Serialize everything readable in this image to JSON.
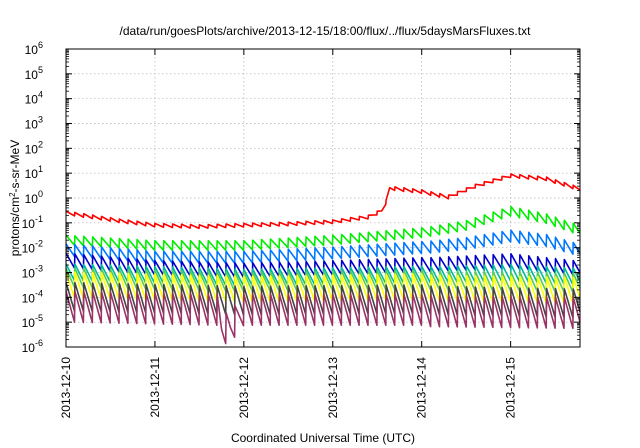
{
  "chart_data": {
    "type": "line",
    "title": "/data/run/goesPlots/archive/2013-12-15/18:00/flux/../flux/5daysMarsFluxes.txt",
    "xlabel": "Coordinated Universal Time (UTC)",
    "ylabel_parts": {
      "prefix": "protons/cm",
      "sup": "2",
      "suffix": "-s-sr-MeV"
    },
    "x_axis": {
      "unit": "days since 2013-12-10 00:00 UTC",
      "range": [
        0,
        5.78
      ],
      "ticks": [
        {
          "x": 0,
          "label": "2013-12-10"
        },
        {
          "x": 1,
          "label": "2013-12-11"
        },
        {
          "x": 2,
          "label": "2013-12-12"
        },
        {
          "x": 3,
          "label": "2013-12-13"
        },
        {
          "x": 4,
          "label": "2013-12-14"
        },
        {
          "x": 5,
          "label": "2013-12-15"
        }
      ]
    },
    "y_axis": {
      "scale": "log",
      "range": [
        1e-06,
        1000000.0
      ],
      "tick_exponents": [
        -6,
        -5,
        -4,
        -3,
        -2,
        -1,
        0,
        1,
        2,
        3,
        4,
        5,
        6
      ],
      "tick_base": "10"
    },
    "grid": true,
    "legend": "none",
    "cycle_days": 0.1,
    "series": [
      {
        "color": "#ff0000",
        "sawtooth_amplitude_decades": 0.15,
        "points": [
          [
            0,
            0.25
          ],
          [
            0.6,
            0.12
          ],
          [
            1.0,
            0.08
          ],
          [
            1.5,
            0.07
          ],
          [
            2.0,
            0.08
          ],
          [
            2.5,
            0.09
          ],
          [
            3.0,
            0.11
          ],
          [
            3.4,
            0.17
          ],
          [
            3.55,
            0.3
          ],
          [
            3.6,
            0.7
          ],
          [
            3.64,
            2.5
          ],
          [
            4.0,
            1.8
          ],
          [
            4.3,
            1.1
          ],
          [
            4.6,
            3.0
          ],
          [
            5.0,
            8.0
          ],
          [
            5.4,
            6.0
          ],
          [
            5.78,
            2.3
          ]
        ]
      },
      {
        "color": "#00ee00",
        "sawtooth_amplitude_decades": 0.4,
        "points": [
          [
            0,
            0.02
          ],
          [
            1.0,
            0.012
          ],
          [
            2.0,
            0.012
          ],
          [
            3.0,
            0.02
          ],
          [
            4.0,
            0.04
          ],
          [
            4.5,
            0.08
          ],
          [
            5.0,
            0.3
          ],
          [
            5.4,
            0.15
          ],
          [
            5.78,
            0.05
          ]
        ]
      },
      {
        "color": "#0077ff",
        "sawtooth_amplitude_decades": 0.5,
        "points": [
          [
            0,
            0.008
          ],
          [
            1.0,
            0.004
          ],
          [
            2.0,
            0.004
          ],
          [
            3.0,
            0.006
          ],
          [
            4.0,
            0.01
          ],
          [
            4.5,
            0.015
          ],
          [
            5.0,
            0.03
          ],
          [
            5.4,
            0.02
          ],
          [
            5.78,
            0.008
          ]
        ]
      },
      {
        "color": "#0000cc",
        "sawtooth_amplitude_decades": 0.6,
        "points": [
          [
            0,
            0.003
          ],
          [
            1.0,
            0.0015
          ],
          [
            2.0,
            0.0012
          ],
          [
            3.0,
            0.0015
          ],
          [
            4.0,
            0.002
          ],
          [
            5.0,
            0.003
          ],
          [
            5.78,
            0.0015
          ]
        ]
      },
      {
        "color": "#00bb99",
        "sawtooth_amplitude_decades": 0.7,
        "points": [
          [
            0,
            0.001
          ],
          [
            2.0,
            0.0006
          ],
          [
            4.0,
            0.0008
          ],
          [
            5.0,
            0.001
          ],
          [
            5.78,
            0.0007
          ]
        ]
      },
      {
        "color": "#55cc55",
        "sawtooth_amplitude_decades": 0.8,
        "points": [
          [
            0,
            0.0006
          ],
          [
            2.0,
            0.0004
          ],
          [
            4.0,
            0.0005
          ],
          [
            5.78,
            0.0004
          ]
        ]
      },
      {
        "color": "#ffff00",
        "sawtooth_amplitude_decades": 1.1,
        "points": [
          [
            0,
            0.0003
          ],
          [
            2.0,
            0.0002
          ],
          [
            4.0,
            0.00025
          ],
          [
            5.78,
            0.0002
          ]
        ]
      },
      {
        "color": "#444444",
        "sawtooth_amplitude_decades": 1.2,
        "points": [
          [
            0,
            0.0001
          ],
          [
            2.0,
            7e-05
          ],
          [
            4.0,
            8e-05
          ],
          [
            5.78,
            6e-05
          ]
        ]
      },
      {
        "color": "#993366",
        "sawtooth_amplitude_decades": 1.3,
        "points": [
          [
            0,
            4e-05
          ],
          [
            1.7,
            3e-05
          ],
          [
            1.75,
            5e-06
          ],
          [
            1.85,
            6e-06
          ],
          [
            2.0,
            3e-05
          ],
          [
            4.0,
            3e-05
          ],
          [
            5.78,
            2.5e-05
          ]
        ]
      }
    ]
  }
}
